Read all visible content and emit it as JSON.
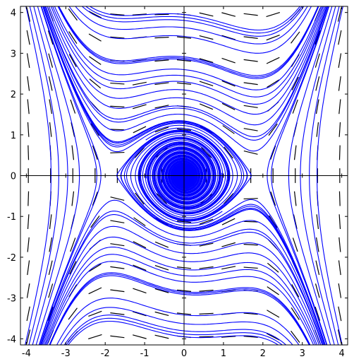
{
  "chart_data": {
    "type": "line",
    "title": "",
    "xlabel": "",
    "ylabel": "",
    "xlim": [
      -4.15,
      4.15
    ],
    "ylim": [
      -4.15,
      4.15
    ],
    "grid": false,
    "x_ticks": [
      -4,
      -3,
      -2,
      -1,
      0,
      1,
      2,
      3,
      4
    ],
    "x_tick_labels": [
      "-4",
      "-3",
      "-2",
      "-1",
      "0",
      "1",
      "2",
      "3",
      "4"
    ],
    "y_ticks": [
      -4,
      -3,
      -2,
      -1,
      0,
      1,
      2,
      3,
      4
    ],
    "y_tick_labels": [
      "-4",
      "-3",
      "-2",
      "-1",
      "0",
      "1",
      "2",
      "3",
      "4"
    ],
    "vector_field": {
      "dx": "y",
      "dy": "-x + x^3/3 - y/10",
      "grid_x": [
        -3.95,
        3.95,
        15
      ],
      "grid_y": [
        -3.95,
        3.95,
        15
      ],
      "segment_length": 0.36,
      "color": "#000000",
      "style": "dashed segments (direction field)"
    },
    "equilibria": [
      {
        "x": 0,
        "y": 0,
        "kind": "stable spiral"
      },
      {
        "x": 1.732,
        "y": 0,
        "kind": "saddle"
      },
      {
        "x": -1.732,
        "y": 0,
        "kind": "saddle"
      }
    ],
    "trajectories": {
      "color": "#0000ff",
      "count_described": "many streamlines spiraling inward to the origin, bounded by separatrices through the saddles",
      "start_points": [
        [
          0.1,
          2.9
        ],
        [
          0.2,
          2.85
        ],
        [
          0.3,
          2.8
        ],
        [
          -0.1,
          -2.9
        ],
        [
          -0.2,
          -2.85
        ],
        [
          -0.3,
          -2.8
        ],
        [
          0,
          2.6
        ],
        [
          0,
          2.45
        ],
        [
          0,
          2.3
        ],
        [
          0,
          2.1
        ],
        [
          0,
          1.9
        ],
        [
          0,
          1.7
        ],
        [
          0,
          1.5
        ],
        [
          0,
          1.3
        ],
        [
          0,
          1.1
        ],
        [
          0,
          0.9
        ],
        [
          0,
          0.7
        ],
        [
          0,
          0.5
        ],
        [
          0,
          0.3
        ],
        [
          0,
          -2.6
        ],
        [
          0,
          -2.45
        ],
        [
          0,
          -2.3
        ],
        [
          0,
          -2.1
        ],
        [
          0,
          -1.9
        ],
        [
          0,
          -1.7
        ],
        [
          0,
          -1.5
        ],
        [
          0,
          -1.3
        ],
        [
          0,
          -1.1
        ],
        [
          0,
          -0.9
        ],
        [
          0,
          -0.7
        ],
        [
          0,
          -0.5
        ],
        [
          3.0,
          4.1
        ],
        [
          2.95,
          4.1
        ],
        [
          2.9,
          4.1
        ],
        [
          3.1,
          4.1
        ],
        [
          3.2,
          4.1
        ],
        [
          -3.0,
          -4.1
        ],
        [
          -2.95,
          -4.1
        ],
        [
          -2.9,
          -4.1
        ],
        [
          -3.1,
          -4.1
        ],
        [
          -3.2,
          -4.1
        ],
        [
          -4.0,
          4.1
        ],
        [
          -3.9,
          4.1
        ],
        [
          -3.8,
          4.1
        ],
        [
          -3.7,
          4.1
        ],
        [
          -3.6,
          4.1
        ],
        [
          -3.5,
          4.1
        ],
        [
          4.0,
          -4.1
        ],
        [
          3.9,
          -4.1
        ],
        [
          3.8,
          -4.1
        ],
        [
          3.7,
          -4.1
        ],
        [
          3.6,
          -4.1
        ],
        [
          3.5,
          -4.1
        ],
        [
          -2.5,
          1.5
        ],
        [
          -2.7,
          1.6
        ],
        [
          2.5,
          -1.5
        ],
        [
          2.7,
          -1.6
        ],
        [
          -1.6,
          0.05
        ],
        [
          1.6,
          -0.05
        ],
        [
          -1.7,
          0.02
        ],
        [
          1.7,
          -0.02
        ]
      ]
    }
  }
}
